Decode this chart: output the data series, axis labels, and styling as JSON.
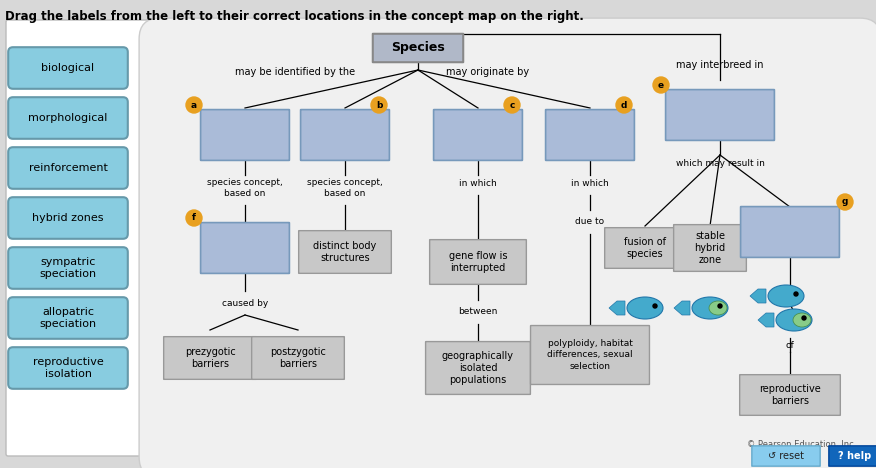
{
  "title": "Drag the labels from the left to their correct locations in the concept map on the right.",
  "fig_w": 8.76,
  "fig_h": 4.68,
  "dpi": 100,
  "bg_color": "#d8d8d8",
  "panel_bg": "#ffffff",
  "map_bg": "#f0f0f0",
  "left_labels": [
    "biological",
    "morphological",
    "reinforcement",
    "hybrid zones",
    "sympatric\nspeciation",
    "allopatric\nspeciation",
    "reproductive\nisolation"
  ],
  "label_fc": "#88cce0",
  "label_ec": "#6699aa",
  "species_fc": "#b0b8c8",
  "species_ec": "#888888",
  "answer_fc": "#aabbd8",
  "answer_ec": "#7799bb",
  "gray_fc": "#c8c8c8",
  "gray_ec": "#999999",
  "circle_fc": "#e8a020",
  "reset_fc": "#88ccee",
  "help_fc": "#1166bb",
  "copyright": "© Pearson Education, Inc."
}
